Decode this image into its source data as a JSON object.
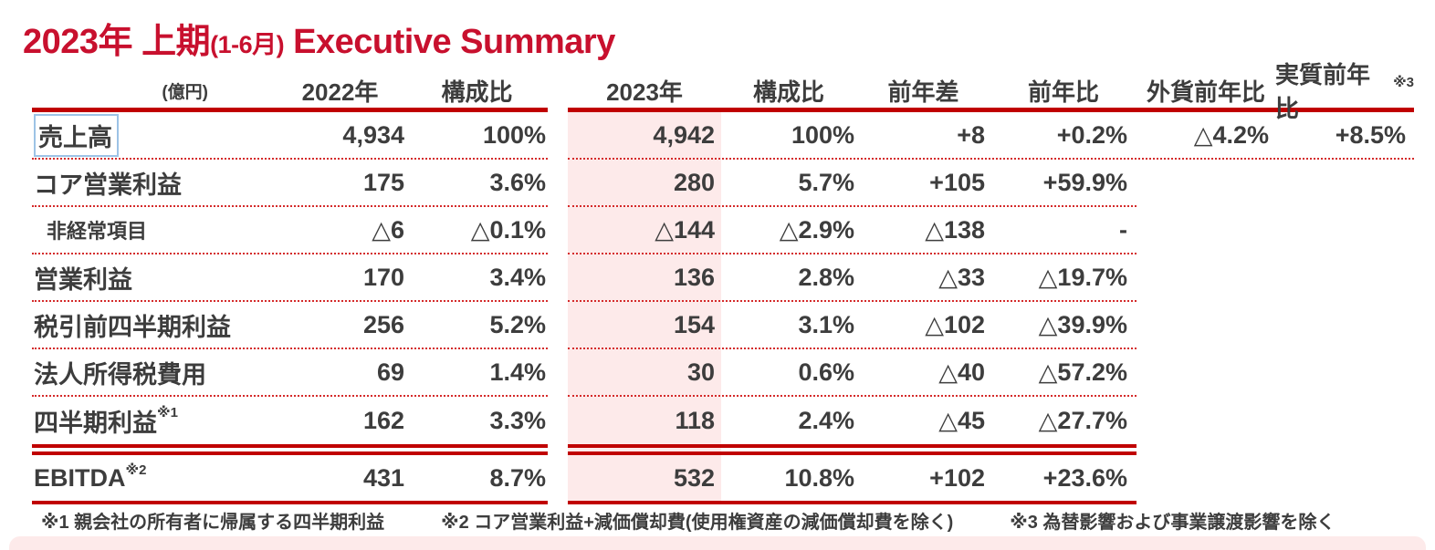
{
  "colors": {
    "accent_red": "#c8102e",
    "line_red": "#c00000",
    "dotted_red": "#d42a2a",
    "highlight_pink": "#fdeaea",
    "selection_blue": "#9dc3e6",
    "text_dark": "#3d3d3d"
  },
  "title": {
    "main_left": "2023年 上期",
    "paren": "(1-6月)",
    "main_right": " Executive Summary"
  },
  "table": {
    "unit_label": "(億円)",
    "headers": {
      "col_2022": "2022年",
      "col_share_2022": "構成比",
      "col_2023": "2023年",
      "col_share_2023": "構成比",
      "col_yoy_diff": "前年差",
      "col_yoy_ratio": "前年比",
      "col_fx_yoy": "外貨前年比",
      "col_real_yoy": "実質前年比",
      "col_real_yoy_sup": "※3"
    },
    "rows": [
      {
        "label": "売上高",
        "sup": "",
        "v2022": "4,934",
        "s2022": "100%",
        "v2023": "4,942",
        "s2023": "100%",
        "diff": "+8",
        "ratio": "+0.2%",
        "fx": "△4.2%",
        "real": "+8.5%"
      },
      {
        "label": "コア営業利益",
        "sup": "",
        "v2022": "175",
        "s2022": "3.6%",
        "v2023": "280",
        "s2023": "5.7%",
        "diff": "+105",
        "ratio": "+59.9%",
        "fx": "",
        "real": ""
      },
      {
        "label": "非経常項目",
        "sup": "",
        "v2022": "△6",
        "s2022": "△0.1%",
        "v2023": "△144",
        "s2023": "△2.9%",
        "diff": "△138",
        "ratio": "-",
        "fx": "",
        "real": ""
      },
      {
        "label": "営業利益",
        "sup": "",
        "v2022": "170",
        "s2022": "3.4%",
        "v2023": "136",
        "s2023": "2.8%",
        "diff": "△33",
        "ratio": "△19.7%",
        "fx": "",
        "real": ""
      },
      {
        "label": "税引前四半期利益",
        "sup": "",
        "v2022": "256",
        "s2022": "5.2%",
        "v2023": "154",
        "s2023": "3.1%",
        "diff": "△102",
        "ratio": "△39.9%",
        "fx": "",
        "real": ""
      },
      {
        "label": "法人所得税費用",
        "sup": "",
        "v2022": "69",
        "s2022": "1.4%",
        "v2023": "30",
        "s2023": "0.6%",
        "diff": "△40",
        "ratio": "△57.2%",
        "fx": "",
        "real": ""
      },
      {
        "label": "四半期利益",
        "sup": "※1",
        "v2022": "162",
        "s2022": "3.3%",
        "v2023": "118",
        "s2023": "2.4%",
        "diff": "△45",
        "ratio": "△27.7%",
        "fx": "",
        "real": ""
      },
      {
        "label": "EBITDA",
        "sup": "※2",
        "v2022": "431",
        "s2022": "8.7%",
        "v2023": "532",
        "s2023": "10.8%",
        "diff": "+102",
        "ratio": "+23.6%",
        "fx": "",
        "real": ""
      }
    ]
  },
  "footnotes": {
    "note1": "※1 親会社の所有者に帰属する四半期利益",
    "note2": "※2 コア営業利益+減価償却費(使用権資産の減価償却費を除く)",
    "note3": "※3 為替影響および事業譲渡影響を除く"
  }
}
